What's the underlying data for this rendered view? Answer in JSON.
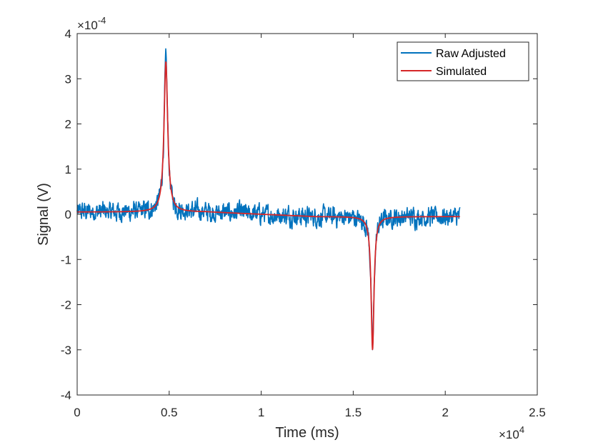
{
  "chart_data": {
    "type": "line",
    "title": "",
    "xlabel": "Time (ms)",
    "ylabel": "Signal (V)",
    "x_exponent": {
      "base": "×10",
      "power": "4"
    },
    "y_exponent": {
      "base": "×10",
      "power": "-4"
    },
    "xlim": [
      0,
      2.5
    ],
    "ylim": [
      -4,
      4
    ],
    "xticks": [
      0,
      0.5,
      1,
      1.5,
      2,
      2.5
    ],
    "xtick_labels": [
      "0",
      "0.5",
      "1",
      "1.5",
      "2",
      "2.5"
    ],
    "yticks": [
      -4,
      -3,
      -2,
      -1,
      0,
      1,
      2,
      3,
      4
    ],
    "ytick_labels": [
      "-4",
      "-3",
      "-2",
      "-1",
      "0",
      "1",
      "2",
      "3",
      "4"
    ],
    "grid": false,
    "legend_position": "top-right",
    "model": {
      "baseline": 0.05,
      "baseline_end": -0.05,
      "peak": {
        "x": 0.482,
        "amplitude": 3.33,
        "half_width": 0.012
      },
      "dip": {
        "x": 1.605,
        "amplitude": -2.95,
        "half_width": 0.0095
      },
      "x_end": 2.08,
      "noise_amplitude": 0.13
    },
    "series": [
      {
        "name": "Raw Adjusted",
        "color": "#0072BD",
        "kind": "noisy"
      },
      {
        "name": "Simulated",
        "color": "#D62728",
        "kind": "smooth"
      }
    ]
  }
}
